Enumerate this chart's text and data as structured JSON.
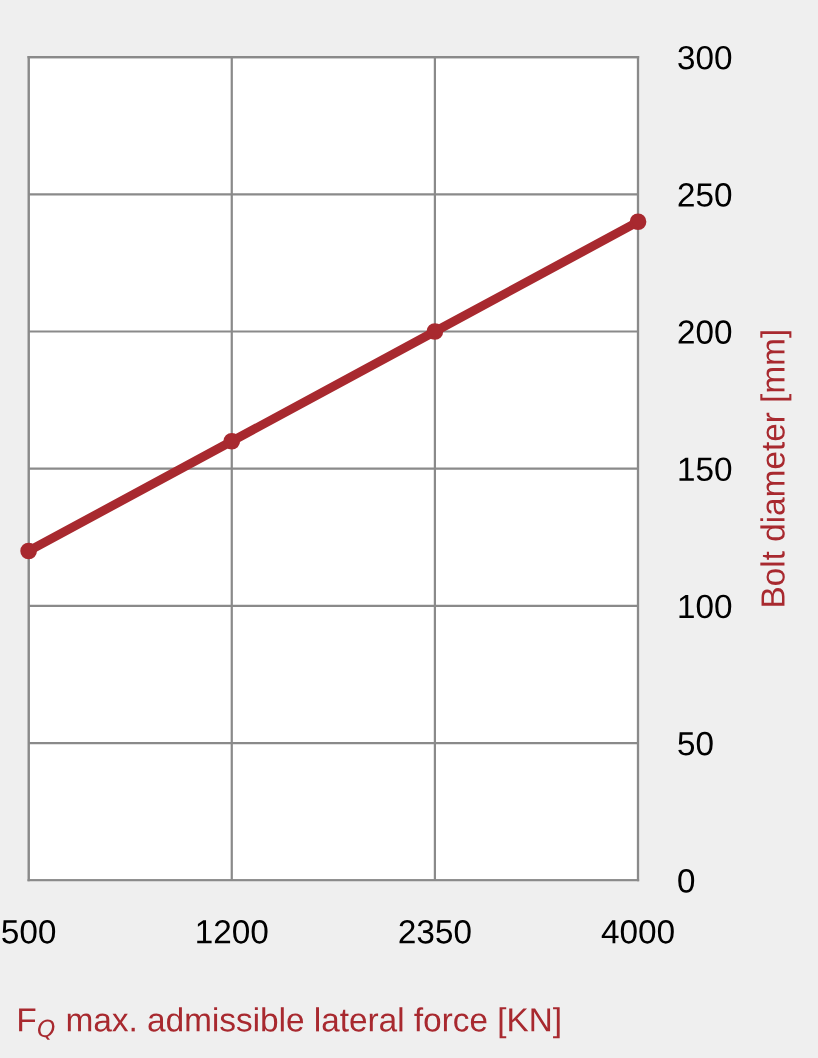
{
  "chart_data": {
    "type": "line",
    "xlabel": "F$_{Q}$ max. admissible lateral force [KN]",
    "ylabel": "Bolt diameter [mm]",
    "categories": [
      "500",
      "1200",
      "2350",
      "4000"
    ],
    "series": [
      {
        "color": "#a8292f",
        "values": [
          120,
          160,
          200,
          240
        ]
      }
    ],
    "ylim": [
      0,
      300
    ],
    "yticks": [
      0,
      50,
      100,
      150,
      200,
      250,
      300
    ],
    "grid": true,
    "marker": "circle",
    "line_style": "solid"
  }
}
